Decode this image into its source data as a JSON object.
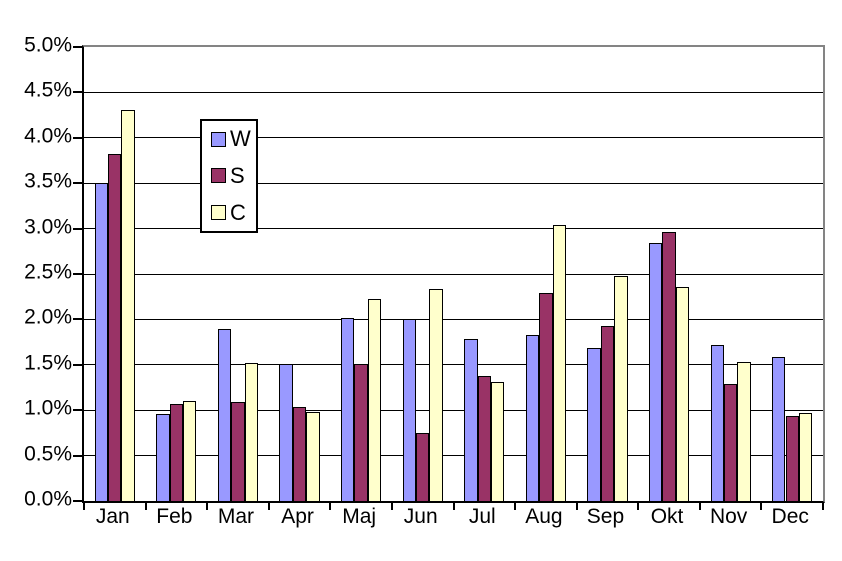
{
  "chart_data": {
    "type": "bar",
    "title": "",
    "xlabel": "",
    "ylabel": "",
    "categories": [
      "Jan",
      "Feb",
      "Mar",
      "Apr",
      "Maj",
      "Jun",
      "Jul",
      "Aug",
      "Sep",
      "Okt",
      "Nov",
      "Dec"
    ],
    "series": [
      {
        "name": "W",
        "color": "#9999FF",
        "values": [
          3.5,
          0.96,
          1.89,
          1.51,
          2.02,
          2.0,
          1.78,
          1.83,
          1.69,
          2.84,
          1.72,
          1.59
        ]
      },
      {
        "name": "S",
        "color": "#993366",
        "values": [
          3.82,
          1.07,
          1.09,
          1.03,
          1.51,
          0.75,
          1.38,
          2.29,
          1.93,
          2.96,
          1.29,
          0.94
        ]
      },
      {
        "name": "C",
        "color": "#FFFFCC",
        "values": [
          4.31,
          1.1,
          1.52,
          0.98,
          2.23,
          2.33,
          1.31,
          3.04,
          2.48,
          2.36,
          1.53,
          0.97
        ]
      }
    ],
    "ylim": [
      0,
      5
    ],
    "y_tick_step": 0.5,
    "y_tick_labels": [
      "0.0%",
      "0.5%",
      "1.0%",
      "1.5%",
      "2.0%",
      "2.5%",
      "3.0%",
      "3.5%",
      "4.0%",
      "4.5%",
      "5.0%"
    ],
    "grid": true,
    "legend_position": "inside-top-left",
    "colors": {
      "bar_border": "#000000",
      "gridline": "#000000",
      "axis_line": "#000000",
      "plot_border": "#848484",
      "background": "#FFFFFF"
    }
  }
}
